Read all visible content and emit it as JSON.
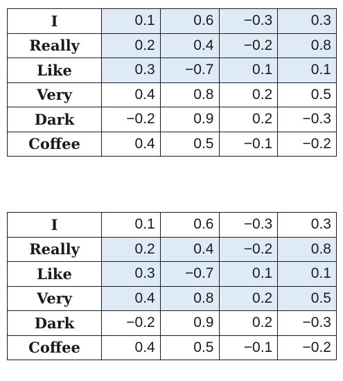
{
  "tables": [
    {
      "highlight_rows": [
        0,
        1,
        2
      ],
      "rows": [
        {
          "word": "I",
          "values": [
            "0.1",
            "0.6",
            "−0.3",
            "0.3"
          ]
        },
        {
          "word": "Really",
          "values": [
            "0.2",
            "0.4",
            "−0.2",
            "0.8"
          ]
        },
        {
          "word": "Like",
          "values": [
            "0.3",
            "−0.7",
            "0.1",
            "0.1"
          ]
        },
        {
          "word": "Very",
          "values": [
            "0.4",
            "0.8",
            "0.2",
            "0.5"
          ]
        },
        {
          "word": "Dark",
          "values": [
            "−0.2",
            "0.9",
            "0.2",
            "−0.3"
          ]
        },
        {
          "word": "Coffee",
          "values": [
            "0.4",
            "0.5",
            "−0.1",
            "−0.2"
          ]
        }
      ]
    },
    {
      "highlight_rows": [
        1,
        2,
        3
      ],
      "rows": [
        {
          "word": "I",
          "values": [
            "0.1",
            "0.6",
            "−0.3",
            "0.3"
          ]
        },
        {
          "word": "Really",
          "values": [
            "0.2",
            "0.4",
            "−0.2",
            "0.8"
          ]
        },
        {
          "word": "Like",
          "values": [
            "0.3",
            "−0.7",
            "0.1",
            "0.1"
          ]
        },
        {
          "word": "Very",
          "values": [
            "0.4",
            "0.8",
            "0.2",
            "0.5"
          ]
        },
        {
          "word": "Dark",
          "values": [
            "−0.2",
            "0.9",
            "0.2",
            "−0.3"
          ]
        },
        {
          "word": "Coffee",
          "values": [
            "0.4",
            "0.5",
            "−0.1",
            "−0.2"
          ]
        }
      ]
    }
  ],
  "highlight_color": "#deebf7"
}
